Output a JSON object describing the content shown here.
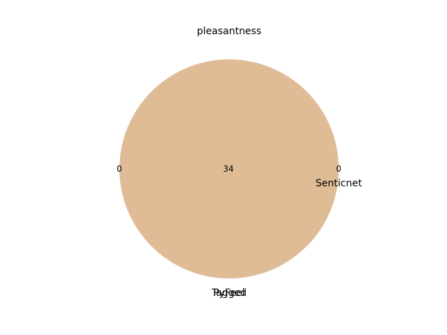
{
  "chart_data": {
    "type": "venn",
    "title": "pleasantness",
    "sets": [
      "PyFeel",
      "Senticnet",
      "Tagged"
    ],
    "regions": [
      {
        "label_value": "0",
        "only": [
          "PyFeel"
        ]
      },
      {
        "label_value": "34",
        "members": [
          "PyFeel",
          "Senticnet",
          "Tagged"
        ]
      },
      {
        "label_value": "0",
        "only": [
          "Senticnet"
        ]
      }
    ],
    "colors": {
      "overlap": "#e0bc96",
      "text": "#000000"
    }
  }
}
